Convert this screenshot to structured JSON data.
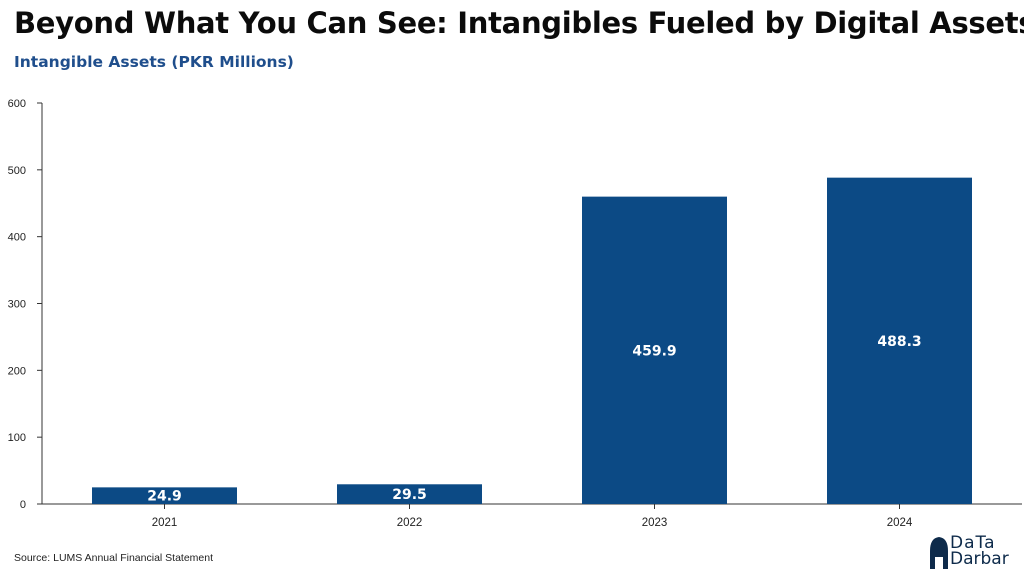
{
  "title": "Beyond What You Can See: Intangibles Fueled by Digital Assets",
  "subtitle": "Intangible Assets (PKR Millions)",
  "source": "Source: LUMS Annual Financial Statement",
  "logo": {
    "line1": "DaTa",
    "line2": "Darbar"
  },
  "colors": {
    "bar": "#0c4a85",
    "title": "#0b0b0b",
    "subtitle": "#1f4e8c",
    "bar_label": "#ffffff",
    "logo": "#0d2a4a"
  },
  "chart_data": {
    "type": "bar",
    "categories": [
      "2021",
      "2022",
      "2023",
      "2024"
    ],
    "values": [
      24.9,
      29.5,
      459.9,
      488.3
    ],
    "value_labels": [
      "24.9",
      "29.5",
      "459.9",
      "488.3"
    ],
    "title": "Intangible Assets (PKR Millions)",
    "xlabel": "",
    "ylabel": "",
    "ylim": [
      0,
      600
    ],
    "yticks": [
      "0",
      "100",
      "200",
      "300",
      "400",
      "500",
      "600"
    ],
    "grid": false,
    "legend": "none"
  }
}
